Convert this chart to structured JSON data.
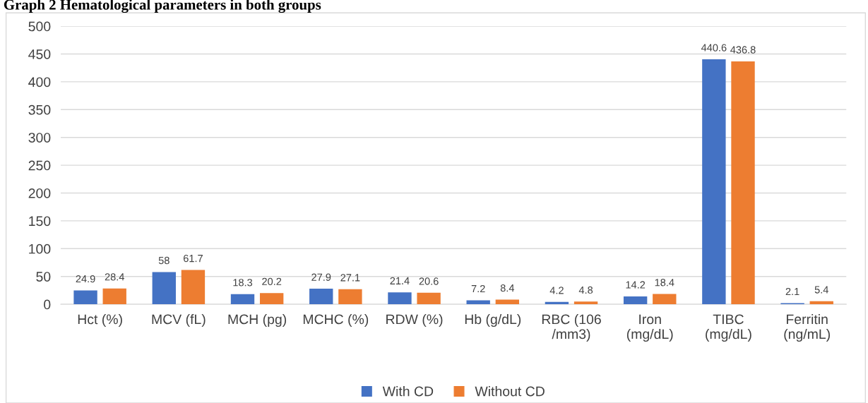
{
  "chart_data": {
    "type": "bar",
    "title": "Graph 2 Hematological parameters in both groups",
    "categories": [
      "Hct (%)",
      "MCV (fL)",
      "MCH (pg)",
      "MCHC (%)",
      "RDW (%)",
      "Hb (g/dL)",
      "RBC (106\n/mm3)",
      "Iron\n(mg/dL)",
      "TIBC\n(mg/dL)",
      "Ferritin\n(ng/mL)"
    ],
    "series": [
      {
        "name": "With CD",
        "color": "#4472c4",
        "values": [
          24.9,
          58,
          18.3,
          27.9,
          21.4,
          7.2,
          4.2,
          14.2,
          440.6,
          2.1
        ]
      },
      {
        "name": "Without CD",
        "color": "#ed7d31",
        "values": [
          28.4,
          61.7,
          20.2,
          27.1,
          20.6,
          8.4,
          4.8,
          18.4,
          436.8,
          5.4
        ]
      }
    ],
    "ylim": [
      0,
      500
    ],
    "yticks": [
      0,
      50,
      100,
      150,
      200,
      250,
      300,
      350,
      400,
      450,
      500
    ],
    "grid": "y",
    "legend": "bottom",
    "data_labels": true
  }
}
